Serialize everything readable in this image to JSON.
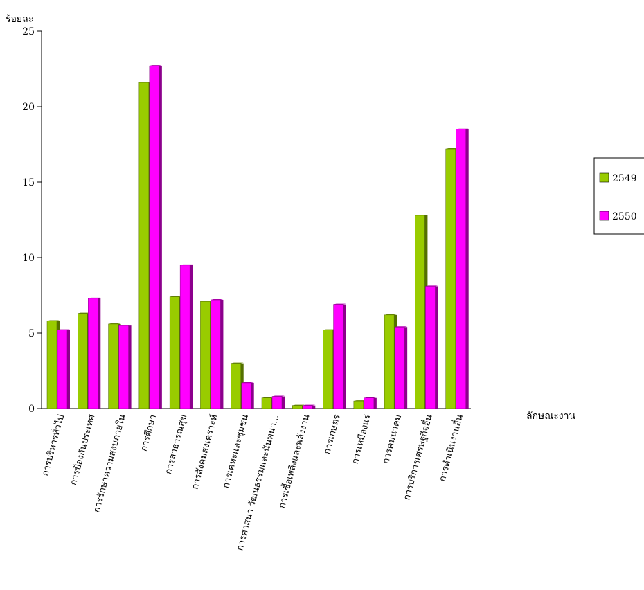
{
  "chart_data": {
    "type": "bar",
    "y_label": "ร้อยละ",
    "x_label": "ลักษณะงาน",
    "categories": [
      "การบริหารทั่วไป",
      "การป้องกันประเทศ",
      "การรักษาความสงบภายใน",
      "การศึกษา",
      "การสาธารณสุข",
      "การสังคมสงเคราะห์",
      "การเคหะและชุมชน",
      "การศาสนา วัฒนธรรมและนันทนา...",
      "การเชื้อเพลิงและพลังงาน",
      "การเกษตร",
      "การเหมืองแร่",
      "การคมนาคม",
      "การบริการเศรษฐกิจอื่น",
      "การดำเนินงานอื่น"
    ],
    "series": [
      {
        "name": "2549",
        "color": "#99cc00",
        "values": [
          5.8,
          6.3,
          5.6,
          21.6,
          7.4,
          7.1,
          3.0,
          0.7,
          0.2,
          5.2,
          0.5,
          6.2,
          12.8,
          17.2
        ]
      },
      {
        "name": "2550",
        "color": "#ff00ff",
        "values": [
          5.2,
          7.3,
          5.5,
          22.7,
          9.5,
          7.2,
          1.7,
          0.8,
          0.2,
          6.9,
          0.7,
          5.4,
          8.1,
          18.5
        ]
      }
    ],
    "ylim": [
      0,
      25
    ],
    "yticks": [
      0,
      5,
      10,
      15,
      20,
      25
    ]
  }
}
